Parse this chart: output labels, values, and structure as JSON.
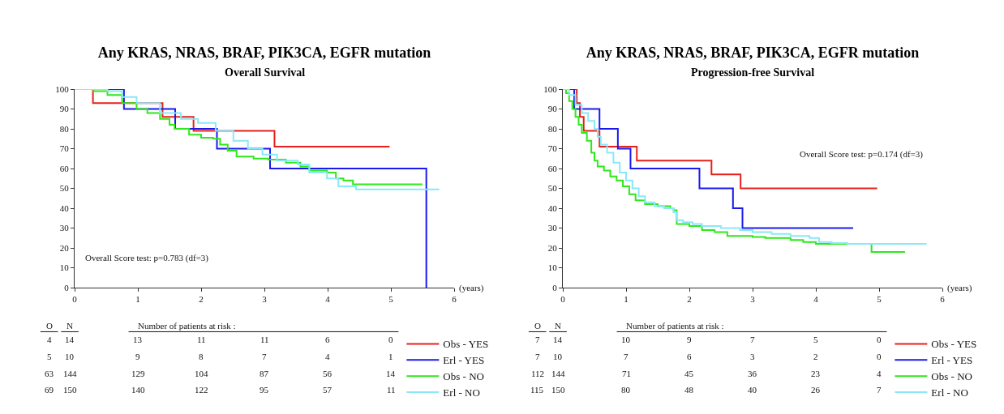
{
  "chart_data": [
    {
      "type": "step",
      "title": "Any KRAS, NRAS, BRAF, PIK3CA, EGFR mutation",
      "subtitle": "Overall Survival",
      "xlabel": "(years)",
      "xlim": [
        0,
        6
      ],
      "xticks": [
        0,
        1,
        2,
        3,
        4,
        5,
        6
      ],
      "ylim": [
        0,
        100
      ],
      "yticks": [
        0,
        10,
        20,
        30,
        40,
        50,
        60,
        70,
        80,
        90,
        100
      ],
      "grid": false,
      "legend": "bottom right",
      "marker": "none",
      "line_style": "solid",
      "series": [
        {
          "name": "Obs - YES",
          "color": "#e8201c",
          "x": [
            0,
            0.29,
            1.39,
            1.88,
            3.16,
            4.98
          ],
          "values": [
            100,
            93,
            86,
            79,
            71,
            71
          ]
        },
        {
          "name": "Erl - YES",
          "color": "#1a1aee",
          "x": [
            0,
            0.78,
            1.59,
            2.25,
            3.09,
            5.56
          ],
          "values": [
            100,
            90,
            80,
            70,
            60,
            0
          ]
        },
        {
          "name": "Obs - NO",
          "color": "#2ee81a",
          "x": [
            0,
            0.3,
            0.52,
            0.75,
            0.98,
            1.15,
            1.35,
            1.5,
            1.58,
            1.81,
            2.0,
            2.19,
            2.3,
            2.42,
            2.56,
            2.83,
            3.06,
            3.34,
            3.57,
            3.71,
            3.99,
            4.13,
            4.25,
            4.4,
            5.5
          ],
          "values": [
            100,
            99,
            97,
            93,
            90,
            88,
            85,
            82,
            80,
            77,
            75.5,
            75,
            72,
            69,
            66,
            65,
            64.5,
            63,
            61,
            59,
            58,
            55,
            54,
            52,
            52
          ]
        },
        {
          "name": "Erl - NO",
          "color": "#8ae8f8",
          "x": [
            0,
            0.52,
            0.75,
            0.98,
            1.35,
            1.68,
            1.95,
            2.23,
            2.51,
            2.74,
            2.97,
            3.2,
            3.53,
            3.71,
            3.99,
            4.17,
            4.45,
            5.75
          ],
          "values": [
            100,
            99,
            96,
            93,
            88,
            85,
            83,
            79,
            74,
            70,
            67,
            64,
            62,
            58,
            55,
            51,
            49.5,
            49
          ]
        }
      ],
      "annotations": [
        "Overall Score test: p=0.783 (df=3)",
        "O",
        "N",
        "Number of patients at risk :",
        "4",
        "14",
        "13",
        "11",
        "11",
        "6",
        "0",
        "5",
        "10",
        "9",
        "8",
        "7",
        "4",
        "1",
        "63",
        "144",
        "129",
        "104",
        "87",
        "56",
        "14",
        "69",
        "150",
        "140",
        "122",
        "95",
        "57",
        "11"
      ]
    },
    {
      "type": "step",
      "title": "Any KRAS, NRAS, BRAF, PIK3CA, EGFR mutation",
      "subtitle": "Progression-free Survival",
      "xlabel": "(years)",
      "xlim": [
        0,
        6
      ],
      "xticks": [
        0,
        1,
        2,
        3,
        4,
        5,
        6
      ],
      "ylim": [
        0,
        100
      ],
      "yticks": [
        0,
        10,
        20,
        30,
        40,
        50,
        60,
        70,
        80,
        90,
        100
      ],
      "grid": false,
      "legend": "bottom right",
      "marker": "none",
      "line_style": "solid",
      "series": [
        {
          "name": "Obs - YES",
          "color": "#e8201c",
          "x": [
            0,
            0.22,
            0.27,
            0.33,
            0.58,
            1.17,
            2.35,
            2.81,
            4.97
          ],
          "values": [
            100,
            93,
            86,
            79,
            71,
            64,
            57,
            50,
            50
          ]
        },
        {
          "name": "Erl - YES",
          "color": "#1a1aee",
          "x": [
            0,
            0.18,
            0.58,
            0.87,
            1.07,
            2.16,
            2.69,
            2.84,
            4.59
          ],
          "values": [
            100,
            90,
            80,
            70,
            60,
            50,
            40,
            30,
            30
          ]
        },
        {
          "name": "Obs - NO",
          "color": "#2ee81a",
          "x": [
            0,
            0.05,
            0.1,
            0.15,
            0.2,
            0.25,
            0.3,
            0.38,
            0.45,
            0.5,
            0.55,
            0.65,
            0.75,
            0.85,
            0.95,
            1.05,
            1.15,
            1.3,
            1.5,
            1.7,
            1.75,
            1.8,
            2.0,
            2.2,
            2.4,
            2.6,
            3.0,
            3.2,
            3.6,
            3.8,
            4.0,
            4.88,
            5.41
          ],
          "values": [
            100,
            98,
            94,
            90,
            86,
            82,
            78,
            74,
            68,
            64,
            61,
            59,
            56,
            54,
            51,
            47,
            44,
            42,
            41,
            40,
            39,
            32,
            31,
            29,
            28,
            26,
            25.5,
            25,
            24,
            23,
            22,
            18,
            18
          ]
        },
        {
          "name": "Erl - NO",
          "color": "#8ae8f8",
          "x": [
            0,
            0.1,
            0.2,
            0.3,
            0.4,
            0.5,
            0.55,
            0.6,
            0.7,
            0.8,
            0.9,
            1.0,
            1.1,
            1.2,
            1.3,
            1.45,
            1.6,
            1.75,
            1.8,
            1.9,
            2.05,
            2.2,
            2.5,
            2.8,
            3.0,
            3.3,
            3.6,
            3.9,
            4.05,
            4.25,
            4.5,
            5.75
          ],
          "values": [
            100,
            97,
            92,
            88,
            84,
            80,
            76,
            72,
            68,
            63,
            58,
            54,
            50,
            46,
            43,
            41,
            40,
            38,
            34,
            33,
            32,
            31,
            30,
            29,
            28,
            27,
            26,
            25,
            23,
            22.5,
            22,
            22
          ]
        }
      ],
      "annotations": [
        "Overall Score test: p=0.174 (df=3)",
        "O",
        "N",
        "Number of patients at risk :",
        "7",
        "14",
        "10",
        "9",
        "7",
        "5",
        "0",
        "7",
        "10",
        "7",
        "6",
        "3",
        "2",
        "0",
        "112",
        "144",
        "71",
        "45",
        "36",
        "23",
        "4",
        "115",
        "150",
        "80",
        "48",
        "40",
        "26",
        "7"
      ]
    }
  ]
}
